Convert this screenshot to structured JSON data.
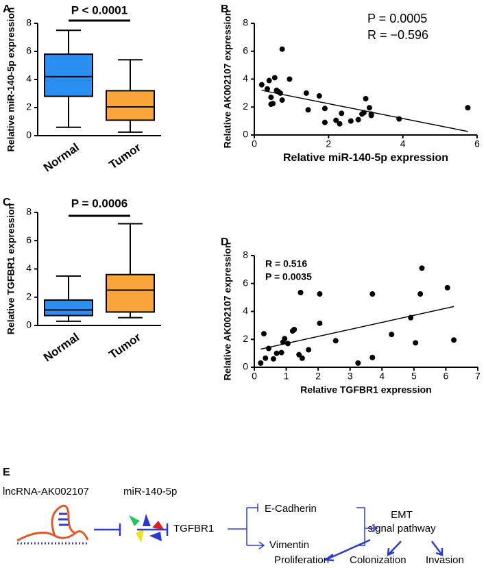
{
  "chart_data": [
    {
      "type": "box",
      "panel": "A",
      "ylabel": "Relative miR-140-5p expression",
      "categories": [
        "Normal",
        "Tumor"
      ],
      "boxes": [
        {
          "min": 0.6,
          "q1": 2.8,
          "median": 4.2,
          "q3": 5.8,
          "max": 7.5
        },
        {
          "min": 0.25,
          "q1": 1.1,
          "median": 2.05,
          "q3": 3.2,
          "max": 5.4
        }
      ],
      "colors": [
        "#2a8ff0",
        "#f9a53a"
      ],
      "ylim": [
        0,
        8
      ],
      "yticks": [
        0,
        2,
        4,
        6,
        8
      ],
      "annotations": [
        "P < 0.0001"
      ]
    },
    {
      "type": "scatter",
      "panel": "B",
      "xlabel": "Relative miR-140-5p expression",
      "ylabel": "Relative AK002107 expression",
      "x": [
        0.2,
        0.35,
        0.4,
        0.45,
        0.5,
        0.45,
        0.55,
        0.6,
        0.65,
        0.7,
        0.75,
        0.75,
        0.95,
        1.4,
        1.45,
        1.75,
        1.9,
        1.9,
        2.2,
        2.3,
        2.35,
        2.6,
        2.8,
        2.9,
        2.95,
        3.0,
        3.15,
        3.15,
        3.1,
        3.9,
        5.75
      ],
      "y": [
        3.6,
        3.3,
        3.9,
        2.2,
        2.25,
        2.7,
        4.1,
        3.2,
        3.1,
        3.0,
        6.15,
        2.5,
        4.0,
        3.0,
        1.8,
        2.8,
        1.9,
        0.9,
        1.05,
        0.8,
        1.55,
        1.0,
        1.1,
        1.5,
        1.6,
        2.6,
        1.4,
        1.5,
        1.95,
        1.15,
        1.95
      ],
      "trendline": {
        "x": [
          0.2,
          5.75
        ],
        "y": [
          3.2,
          0.25
        ]
      },
      "color": "#000000",
      "xlim": [
        0,
        6
      ],
      "xticks": [
        0,
        2,
        4,
        6
      ],
      "ylim": [
        0,
        8
      ],
      "yticks": [
        0,
        2,
        4,
        6,
        8
      ],
      "annotations": [
        "P = 0.0005",
        "R = −0.596"
      ]
    },
    {
      "type": "box",
      "panel": "C",
      "ylabel": "Relative TGFBR1 expression",
      "categories": [
        "Normal",
        "Tumor"
      ],
      "boxes": [
        {
          "min": 0.3,
          "q1": 0.7,
          "median": 1.1,
          "q3": 1.8,
          "max": 3.5
        },
        {
          "min": 0.55,
          "q1": 0.95,
          "median": 2.5,
          "q3": 3.6,
          "max": 7.2
        }
      ],
      "colors": [
        "#2a8ff0",
        "#f9a53a"
      ],
      "ylim": [
        0,
        8
      ],
      "yticks": [
        0,
        2,
        4,
        6,
        8
      ],
      "annotations": [
        "P = 0.0006"
      ]
    },
    {
      "type": "scatter",
      "panel": "D",
      "xlabel": "Relative TGFBR1 expression",
      "ylabel": "Relative AK002107 expression",
      "x": [
        0.2,
        0.3,
        0.35,
        0.45,
        0.6,
        0.7,
        0.85,
        0.9,
        0.95,
        1.05,
        1.2,
        1.25,
        1.4,
        1.45,
        1.5,
        1.7,
        2.05,
        2.05,
        2.55,
        3.25,
        3.7,
        3.7,
        4.3,
        4.9,
        5.05,
        5.2,
        5.25,
        6.05,
        6.25
      ],
      "y": [
        0.3,
        2.4,
        0.65,
        1.35,
        0.6,
        1.0,
        1.05,
        1.8,
        2.05,
        1.7,
        2.6,
        2.7,
        0.9,
        5.35,
        0.65,
        1.25,
        5.25,
        3.15,
        1.9,
        0.3,
        0.7,
        5.25,
        2.35,
        3.55,
        1.75,
        5.25,
        7.1,
        5.7,
        1.95
      ],
      "trendline": {
        "x": [
          0.2,
          6.25
        ],
        "y": [
          1.3,
          4.35
        ]
      },
      "color": "#000000",
      "xlim": [
        0,
        7
      ],
      "xticks": [
        0,
        1,
        2,
        3,
        4,
        5,
        6,
        7
      ],
      "ylim": [
        0,
        8
      ],
      "yticks": [
        0,
        2,
        4,
        6,
        8
      ],
      "annotations": [
        "R = 0.516",
        "P = 0.0035"
      ]
    }
  ],
  "diagram": {
    "panel": "E",
    "nodes": [
      "lncRNA-AK002107",
      "miR-140-5p",
      "TGFBR1",
      "E-Cadherin",
      "Vimentin",
      "EMT",
      "signal pathway",
      "Proliferation",
      "Colonization",
      "Invasion"
    ]
  }
}
